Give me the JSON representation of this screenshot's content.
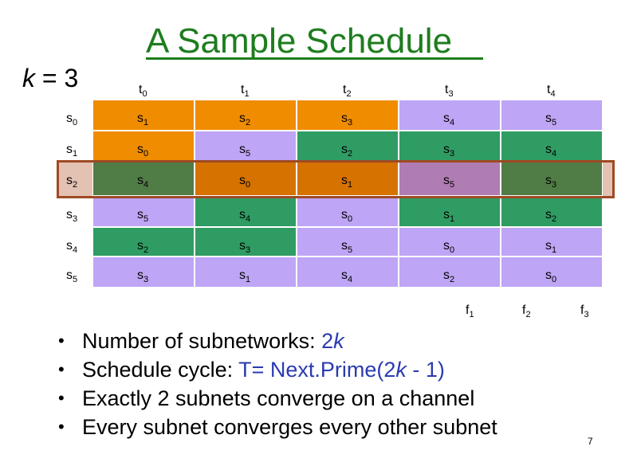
{
  "title": "A Sample Schedule",
  "k_label": {
    "var": "k",
    "eq": " = ",
    "value": "3"
  },
  "columns": [
    {
      "base": "t",
      "sub": "0"
    },
    {
      "base": "t",
      "sub": "1"
    },
    {
      "base": "t",
      "sub": "2"
    },
    {
      "base": "t",
      "sub": "3"
    },
    {
      "base": "t",
      "sub": "4"
    }
  ],
  "rows": [
    {
      "base": "s",
      "sub": "0"
    },
    {
      "base": "s",
      "sub": "1"
    },
    {
      "base": "s",
      "sub": "2"
    },
    {
      "base": "s",
      "sub": "3"
    },
    {
      "base": "s",
      "sub": "4"
    },
    {
      "base": "s",
      "sub": "5"
    }
  ],
  "colors": {
    "lavender": "#bea5f5",
    "orange": "#f08c00",
    "green": "#2f9c64",
    "darkgreen": "#507c45",
    "darkorange": "#d67200",
    "mauve": "#b07cb4",
    "highlight": "#e3c1b3",
    "highlight_border": "#9e4a24",
    "title": "#1e7d1e"
  },
  "cells": [
    [
      {
        "t": "s",
        "n": "1",
        "c": "orange"
      },
      {
        "t": "s",
        "n": "2",
        "c": "orange"
      },
      {
        "t": "s",
        "n": "3",
        "c": "orange"
      },
      {
        "t": "s",
        "n": "4",
        "c": "lavender"
      },
      {
        "t": "s",
        "n": "5",
        "c": "lavender"
      }
    ],
    [
      {
        "t": "s",
        "n": "0",
        "c": "orange"
      },
      {
        "t": "s",
        "n": "5",
        "c": "lavender"
      },
      {
        "t": "s",
        "n": "2",
        "c": "green"
      },
      {
        "t": "s",
        "n": "3",
        "c": "green"
      },
      {
        "t": "s",
        "n": "4",
        "c": "green"
      }
    ],
    [
      {
        "t": "s",
        "n": "4",
        "c": "darkgreen"
      },
      {
        "t": "s",
        "n": "0",
        "c": "darkorange"
      },
      {
        "t": "s",
        "n": "1",
        "c": "darkorange"
      },
      {
        "t": "s",
        "n": "5",
        "c": "mauve"
      },
      {
        "t": "s",
        "n": "3",
        "c": "darkgreen"
      }
    ],
    [
      {
        "t": "s",
        "n": "5",
        "c": "lavender"
      },
      {
        "t": "s",
        "n": "4",
        "c": "green"
      },
      {
        "t": "s",
        "n": "0",
        "c": "lavender"
      },
      {
        "t": "s",
        "n": "1",
        "c": "green"
      },
      {
        "t": "s",
        "n": "2",
        "c": "green"
      }
    ],
    [
      {
        "t": "s",
        "n": "2",
        "c": "green"
      },
      {
        "t": "s",
        "n": "3",
        "c": "green"
      },
      {
        "t": "s",
        "n": "5",
        "c": "lavender"
      },
      {
        "t": "s",
        "n": "0",
        "c": "lavender"
      },
      {
        "t": "s",
        "n": "1",
        "c": "lavender"
      }
    ],
    [
      {
        "t": "s",
        "n": "3",
        "c": "lavender"
      },
      {
        "t": "s",
        "n": "1",
        "c": "lavender"
      },
      {
        "t": "s",
        "n": "4",
        "c": "lavender"
      },
      {
        "t": "s",
        "n": "2",
        "c": "lavender"
      },
      {
        "t": "s",
        "n": "0",
        "c": "lavender"
      }
    ]
  ],
  "frequencies": [
    {
      "base": "f",
      "sub": "1"
    },
    {
      "base": "f",
      "sub": "2"
    },
    {
      "base": "f",
      "sub": "3"
    }
  ],
  "bullets": [
    {
      "text": "Number of subnetworks: ",
      "blue_pre": "2",
      "blue_var": "k",
      "blue_post": "",
      "tail": ""
    },
    {
      "text": "Schedule cycle: ",
      "blue_pre": "T= Next.Prime(2",
      "blue_var": "k",
      "blue_post": " - 1)",
      "tail": ""
    },
    {
      "text": "Exactly 2 subnets converge on a channel",
      "blue_pre": "",
      "blue_var": "",
      "blue_post": "",
      "tail": ""
    },
    {
      "text": "Every subnet converges every other subnet",
      "blue_pre": "",
      "blue_var": "",
      "blue_post": "",
      "tail": ""
    }
  ],
  "page_number": "7"
}
